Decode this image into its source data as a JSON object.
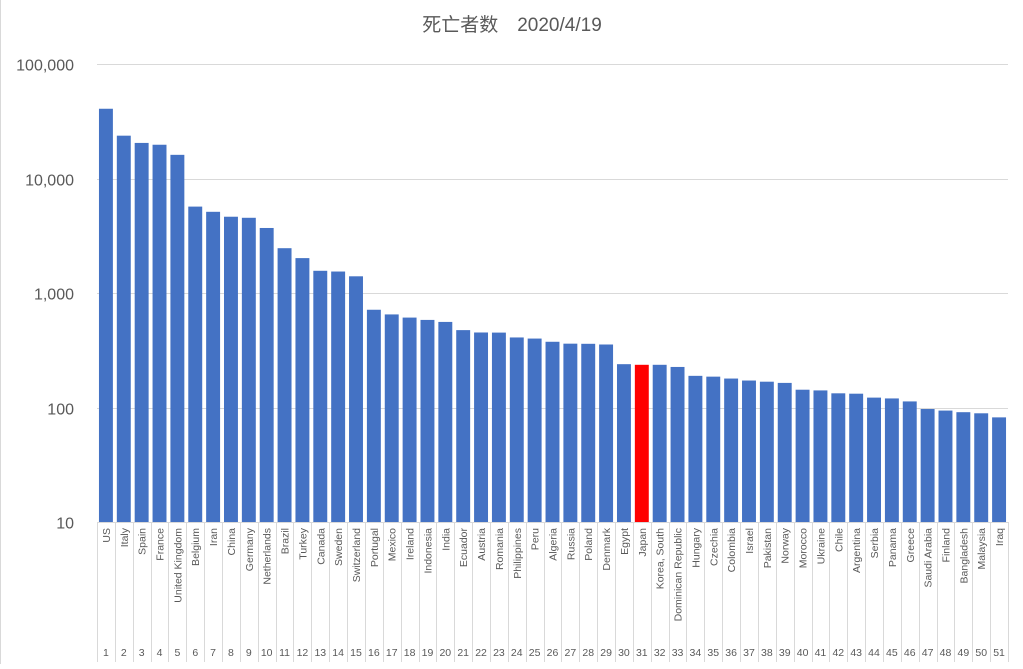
{
  "chart_data": {
    "type": "bar",
    "title": "死亡者数　2020/4/19",
    "xlabel": "",
    "ylabel": "",
    "yscale": "log",
    "ylim": [
      10,
      100000
    ],
    "yticks": [
      "10",
      "100",
      "1,000",
      "10,000",
      "100,000"
    ],
    "ytick_values": [
      10,
      100,
      1000,
      10000,
      100000
    ],
    "grid": true,
    "bar_color": "#4472C4",
    "highlight_color": "#FF0000",
    "highlight_category": "Japan",
    "categories": [
      "US",
      "Italy",
      "Spain",
      "France",
      "United Kingdom",
      "Belgium",
      "Iran",
      "China",
      "Germany",
      "Netherlands",
      "Brazil",
      "Turkey",
      "Canada",
      "Sweden",
      "Switzerland",
      "Portugal",
      "Mexico",
      "Ireland",
      "Indonesia",
      "India",
      "Ecuador",
      "Austria",
      "Romania",
      "Philippines",
      "Peru",
      "Algeria",
      "Russia",
      "Poland",
      "Denmark",
      "Egypt",
      "Japan",
      "Korea, South",
      "Dominican Republic",
      "Hungary",
      "Czechia",
      "Colombia",
      "Israel",
      "Pakistan",
      "Norway",
      "Morocco",
      "Ukraine",
      "Chile",
      "Argentina",
      "Serbia",
      "Panama",
      "Greece",
      "Saudi Arabia",
      "Finland",
      "Bangladesh",
      "Malaysia",
      "Iraq"
    ],
    "ranks": [
      "1",
      "2",
      "3",
      "4",
      "5",
      "6",
      "7",
      "8",
      "9",
      "10",
      "11",
      "12",
      "13",
      "14",
      "15",
      "16",
      "17",
      "18",
      "19",
      "20",
      "21",
      "22",
      "23",
      "24",
      "25",
      "26",
      "27",
      "28",
      "29",
      "30",
      "31",
      "32",
      "33",
      "34",
      "35",
      "36",
      "37",
      "38",
      "39",
      "40",
      "41",
      "42",
      "43",
      "44",
      "45",
      "46",
      "47",
      "48",
      "49",
      "50",
      "51"
    ],
    "values": [
      40661,
      23660,
      20453,
      19718,
      16095,
      5683,
      5118,
      4636,
      4538,
      3697,
      2462,
      2017,
      1563,
      1540,
      1399,
      714,
      650,
      610,
      582,
      559,
      474,
      452,
      451,
      409,
      400,
      375,
      361,
      360,
      355,
      239,
      236,
      236,
      226,
      189,
      186,
      179,
      172,
      168,
      164,
      143,
      141,
      133,
      132,
      122,
      120,
      113,
      97,
      94,
      91,
      89,
      82
    ]
  }
}
